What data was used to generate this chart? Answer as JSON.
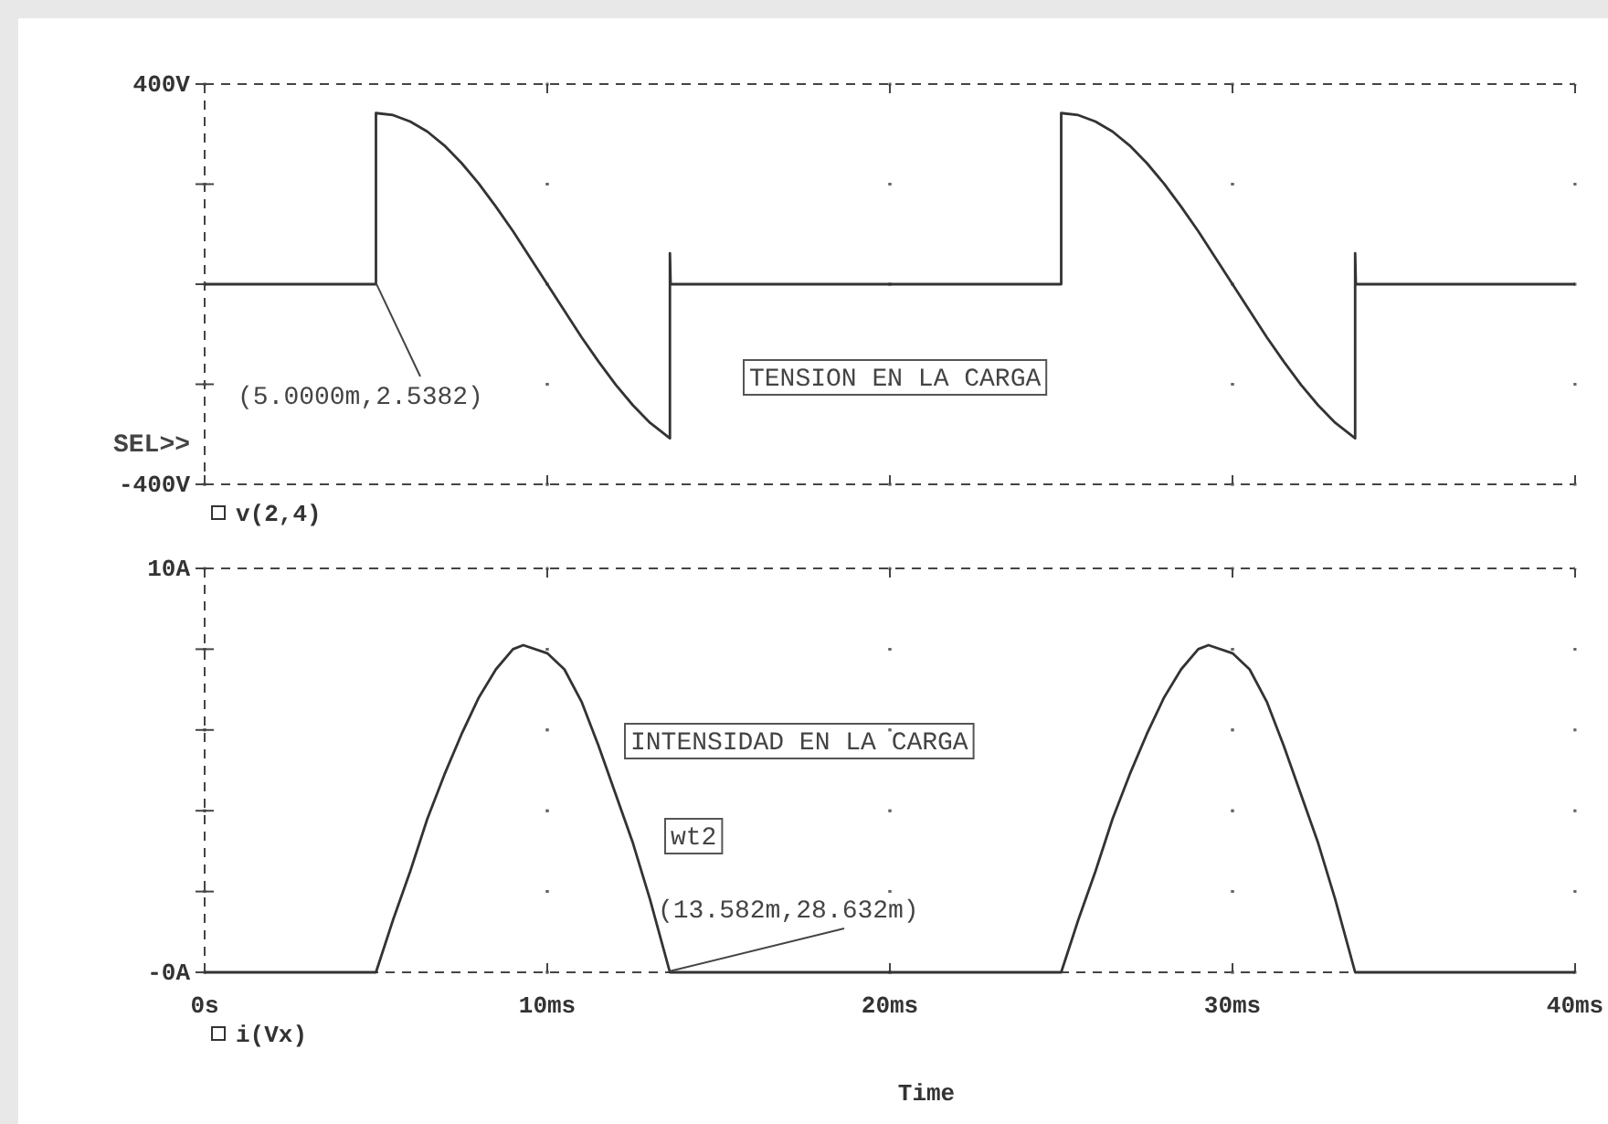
{
  "chart_data": [
    {
      "type": "line",
      "xlim": [
        0,
        40
      ],
      "xticks": [
        0,
        10,
        20,
        30,
        40
      ],
      "ylim": [
        -400,
        400
      ],
      "yticks": [
        {
          "value": -400,
          "label": "-400V"
        },
        {
          "value": -200,
          "label": null
        },
        {
          "value": 0,
          "label": null
        },
        {
          "value": 200,
          "label": null
        },
        {
          "value": 400,
          "label": "400V"
        }
      ],
      "tick_labels": "y",
      "grid": true,
      "legend": "bottom",
      "line_style": "solid",
      "marker": "none",
      "series": [
        {
          "name": "v(2,4)",
          "color": "#333333",
          "x": [
            0,
            5,
            5,
            5.5,
            6,
            6.5,
            7,
            7.5,
            8,
            8.5,
            9,
            9.5,
            10,
            10.5,
            11,
            11.5,
            12,
            12.5,
            13,
            13.58,
            13.58,
            13.6,
            25,
            25,
            25.5,
            26,
            26.5,
            27,
            27.5,
            28,
            28.5,
            29,
            29.5,
            30,
            30.5,
            31,
            31.5,
            32,
            32.5,
            33,
            33.58,
            33.58,
            33.6,
            40
          ],
          "values": [
            0,
            0,
            342,
            338,
            325,
            305,
            277,
            242,
            201,
            155,
            106,
            53,
            0,
            -53,
            -106,
            -155,
            -201,
            -242,
            -277,
            -308,
            62,
            0,
            0,
            342,
            338,
            325,
            305,
            277,
            242,
            201,
            155,
            106,
            53,
            0,
            -53,
            -106,
            -155,
            -201,
            -242,
            -277,
            -308,
            62,
            0,
            0
          ]
        }
      ],
      "annotations": [
        {
          "text": "(5.0000m,2.5382)",
          "x": 5,
          "y": 2.5382
        },
        "TENSION EN LA CARGA",
        "SEL>>"
      ]
    },
    {
      "type": "line",
      "xlim": [
        0,
        40
      ],
      "xticks": [
        {
          "value": 0,
          "label": "0s"
        },
        {
          "value": 10,
          "label": "10ms"
        },
        {
          "value": 20,
          "label": "20ms"
        },
        {
          "value": 30,
          "label": "30ms"
        },
        {
          "value": 40,
          "label": "40ms"
        }
      ],
      "ylim": [
        0,
        10
      ],
      "yticks": [
        {
          "value": 0,
          "label": "-0A"
        },
        {
          "value": 2,
          "label": null
        },
        {
          "value": 4,
          "label": null
        },
        {
          "value": 6,
          "label": null
        },
        {
          "value": 8,
          "label": null
        },
        {
          "value": 10,
          "label": "10A"
        }
      ],
      "xlabel": "Time",
      "grid": true,
      "legend": "bottom",
      "line_style": "solid",
      "marker": "none",
      "series": [
        {
          "name": "i(Vx)",
          "color": "#333333",
          "x": [
            0,
            5,
            5.5,
            6,
            6.5,
            7,
            7.5,
            8,
            8.5,
            9,
            9.3,
            10,
            10.5,
            11,
            11.5,
            12,
            12.5,
            13,
            13.58,
            25,
            25.5,
            26,
            26.5,
            27,
            27.5,
            28,
            28.5,
            29,
            29.3,
            30,
            30.5,
            31,
            31.5,
            32,
            32.5,
            33,
            33.58,
            40
          ],
          "values": [
            0,
            0,
            1.3,
            2.5,
            3.8,
            4.9,
            5.9,
            6.8,
            7.5,
            8,
            8.1,
            7.9,
            7.5,
            6.7,
            5.6,
            4.4,
            3.2,
            1.8,
            0,
            0,
            1.3,
            2.5,
            3.8,
            4.9,
            5.9,
            6.8,
            7.5,
            8,
            8.1,
            7.9,
            7.5,
            6.7,
            5.6,
            4.4,
            3.2,
            1.8,
            0,
            0
          ]
        }
      ],
      "annotations": [
        "INTENSIDAD EN LA CARGA",
        "wt2",
        {
          "text": "(13.582m,28.632m)",
          "x": 13.582,
          "y": 0.028632
        }
      ]
    }
  ]
}
